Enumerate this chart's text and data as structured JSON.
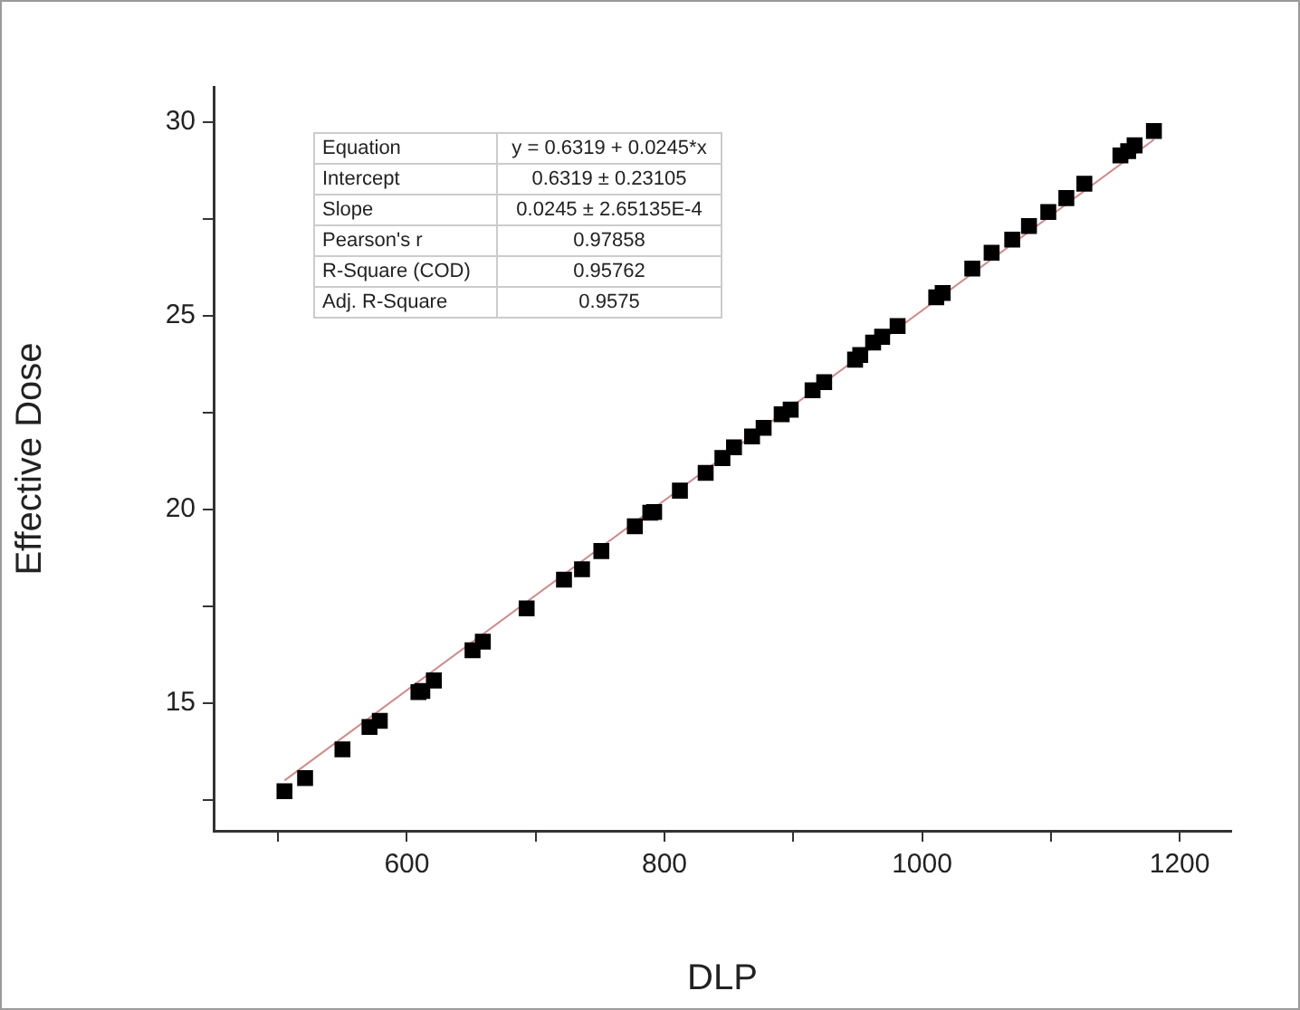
{
  "chart_data": {
    "type": "scatter",
    "xlabel": "DLP",
    "ylabel": "Effective Dose",
    "xlim": [
      450,
      1240
    ],
    "ylim": [
      11.7,
      30.9
    ],
    "xticks": [
      {
        "value": 500,
        "label": null
      },
      600,
      {
        "value": 700,
        "label": null
      },
      800,
      {
        "value": 900,
        "label": null
      },
      1000,
      {
        "value": 1100,
        "label": null
      },
      1200
    ],
    "yticks": [
      {
        "value": 12.5,
        "label": null
      },
      15,
      {
        "value": 17.5,
        "label": null
      },
      20,
      {
        "value": 22.5,
        "label": null
      },
      25,
      {
        "value": 27.5,
        "label": null
      },
      30
    ],
    "grid": false,
    "legend": false,
    "marker": "square",
    "series": [
      {
        "color": "#000000",
        "x": [
          505,
          521,
          550,
          571,
          579,
          609,
          612,
          621,
          651,
          659,
          693,
          722,
          736,
          751,
          777,
          789,
          792,
          812,
          832,
          845,
          854,
          868,
          877,
          891,
          898,
          915,
          924,
          948,
          952,
          962,
          969,
          981,
          1011,
          1016,
          1039,
          1054,
          1070,
          1083,
          1098,
          1112,
          1126,
          1154,
          1160,
          1165,
          1180
        ],
        "values": [
          12.72,
          13.06,
          13.8,
          14.38,
          14.54,
          15.28,
          15.31,
          15.58,
          16.36,
          16.58,
          17.44,
          18.18,
          18.45,
          18.92,
          19.56,
          19.91,
          19.93,
          20.48,
          20.94,
          21.32,
          21.6,
          21.88,
          22.1,
          22.45,
          22.57,
          23.07,
          23.28,
          23.86,
          23.98,
          24.3,
          24.45,
          24.73,
          25.47,
          25.58,
          26.21,
          26.62,
          26.96,
          27.31,
          27.67,
          28.03,
          28.4,
          29.13,
          29.24,
          29.39,
          29.76
        ]
      },
      {
        "type": "line",
        "color": "#d08a8a",
        "marker": "none",
        "line_style": "solid",
        "x": [
          505,
          1180
        ],
        "values": [
          13.0,
          29.54
        ]
      }
    ],
    "annotations": [
      "Equation",
      "y = 0.6319 + 0.0245*x",
      "Intercept",
      "0.6319 ± 0.23105",
      "Slope",
      "0.0245 ± 2.65135E-4",
      "Pearson's r",
      "0.97858",
      "R-Square (COD)",
      "0.95762",
      "Adj. R-Square",
      "0.9575"
    ]
  }
}
